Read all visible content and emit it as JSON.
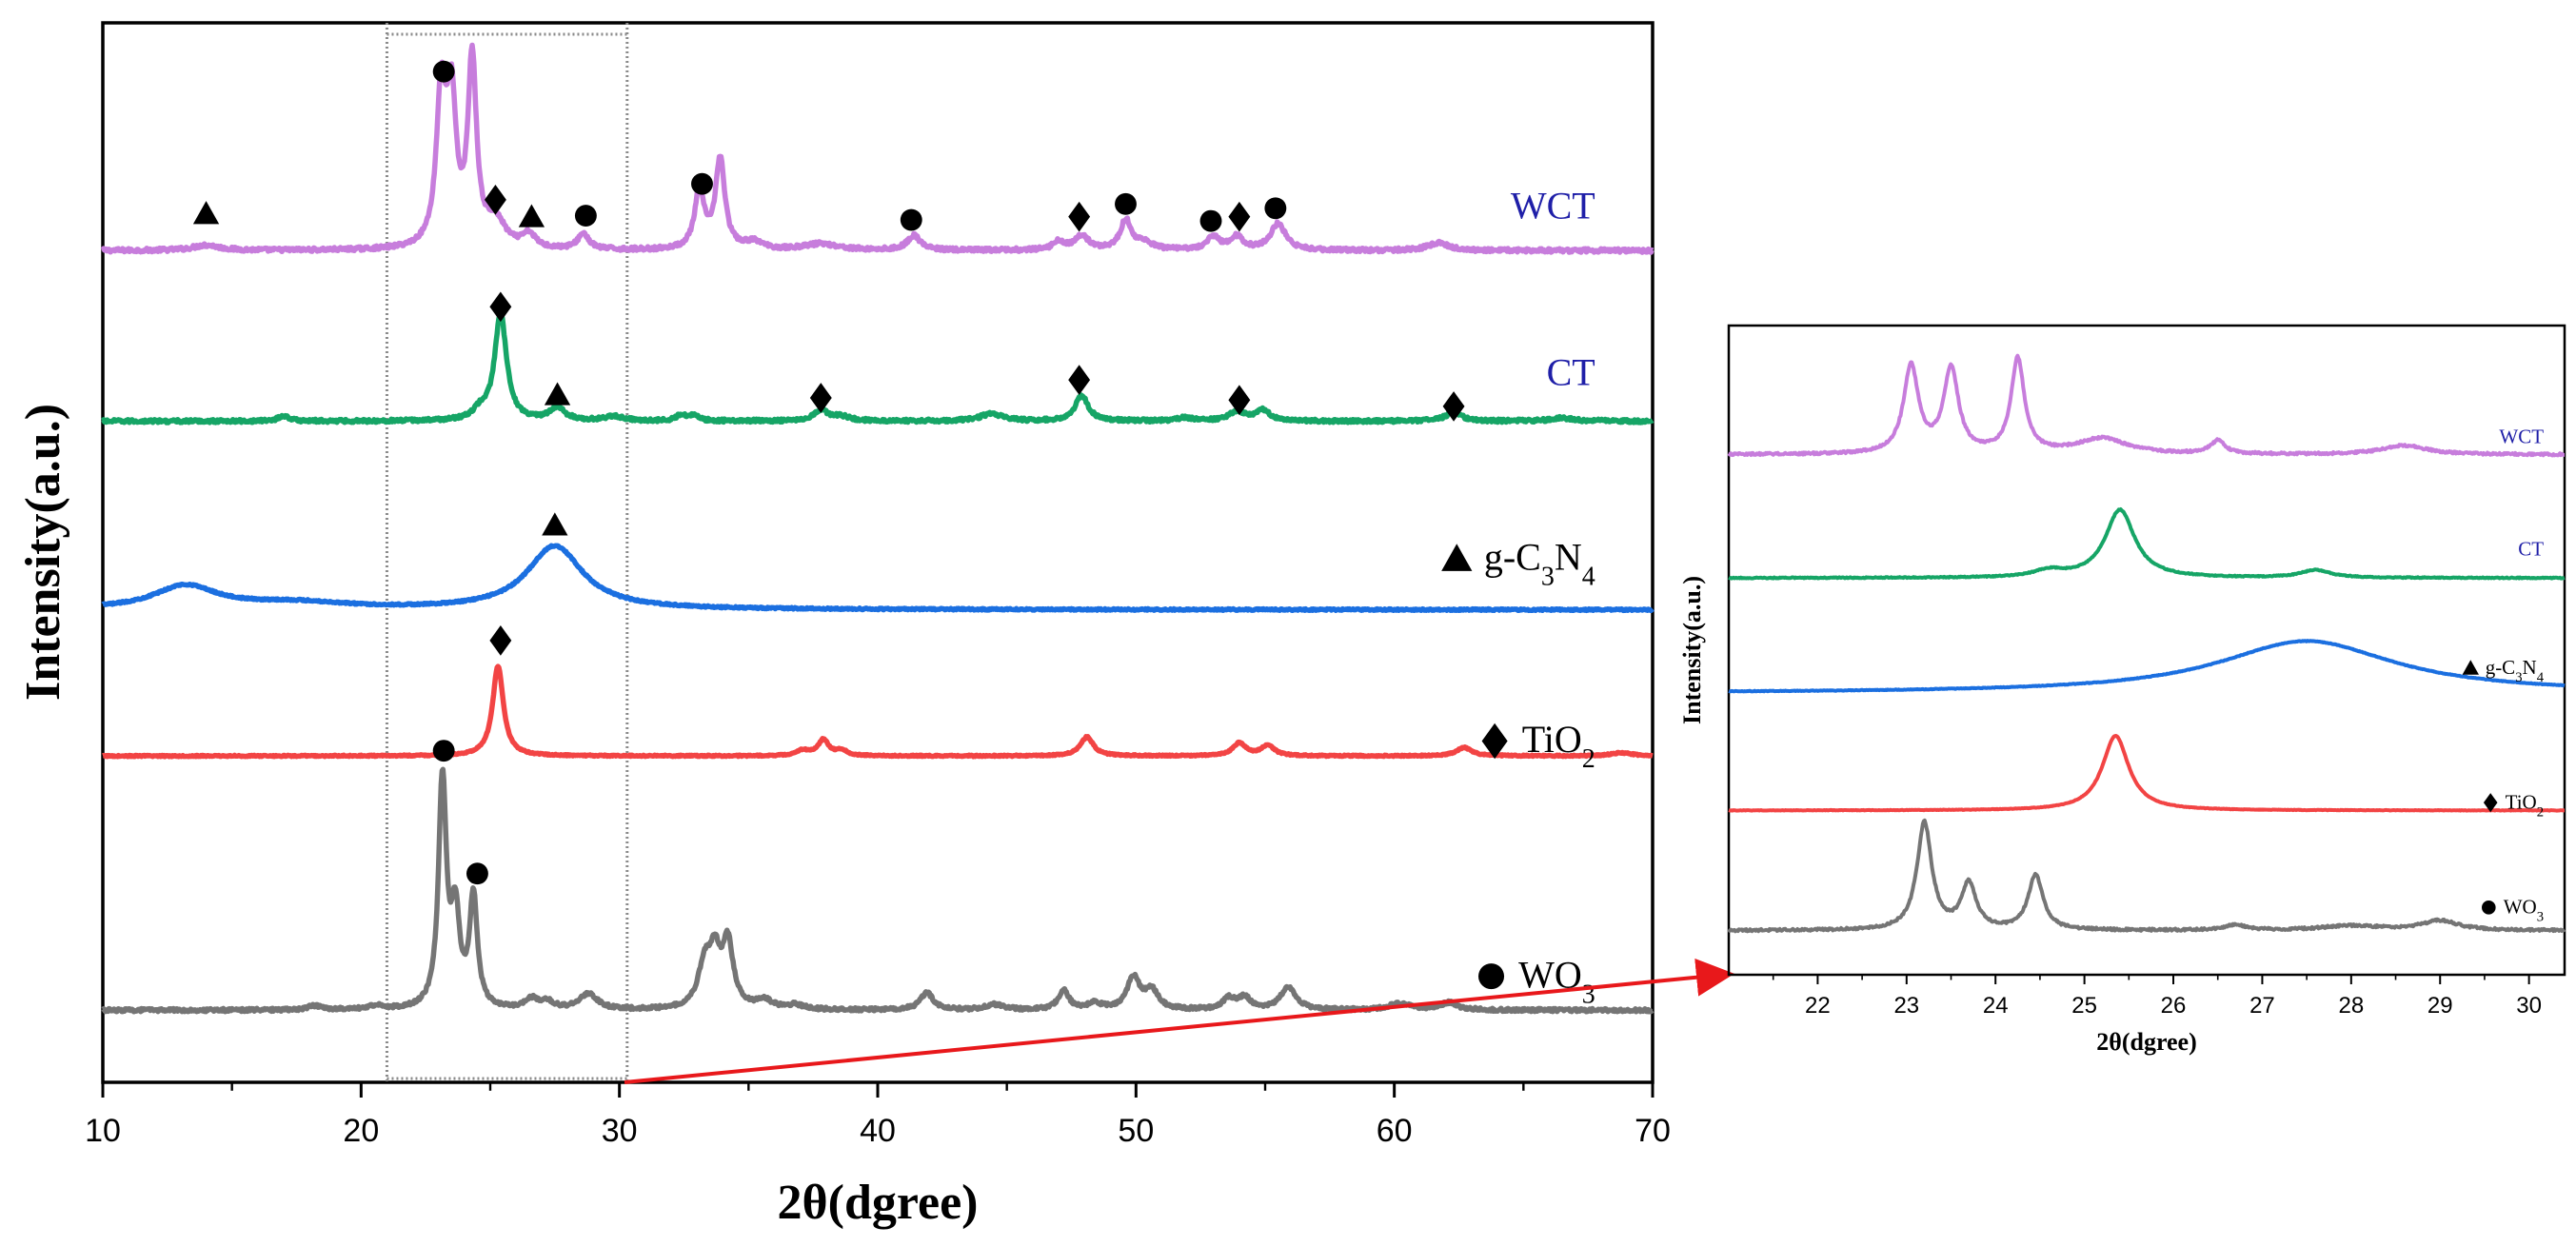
{
  "chart_data": [
    {
      "id": "main",
      "type": "line",
      "title": "",
      "xlabel": "2θ(dgree)",
      "ylabel": "Intensity(a.u.)",
      "xlim": [
        10,
        70
      ],
      "xticks": [
        10,
        20,
        30,
        40,
        50,
        60,
        70
      ],
      "y_units": "stacked intensity (a.u.)",
      "ylim": [
        0,
        100
      ],
      "yticks_visible": false,
      "grid": false,
      "highlight_region": {
        "x_range": [
          21,
          30.3
        ],
        "style": "dotted"
      },
      "series": [
        {
          "key": "wct",
          "name": "WCT",
          "label_parts": [
            {
              "t": "WCT"
            }
          ],
          "label_marker": "",
          "color": "#c77ddc",
          "label_color": "#1f1fa8",
          "baseline": 78.5,
          "noise": 0.35,
          "peaks": [
            [
              14.0,
              0.5,
              0.6
            ],
            [
              23.1,
              14,
              0.22
            ],
            [
              23.5,
              13,
              0.22
            ],
            [
              24.3,
              17.5,
              0.2
            ],
            [
              25.2,
              2.5,
              0.45
            ],
            [
              26.5,
              1.3,
              0.3
            ],
            [
              28.6,
              1.5,
              0.25
            ],
            [
              33.1,
              5.5,
              0.22
            ],
            [
              33.9,
              8.5,
              0.22
            ],
            [
              35.2,
              0.7,
              0.4
            ],
            [
              37.8,
              0.6,
              0.8
            ],
            [
              41.4,
              1.4,
              0.3
            ],
            [
              47.0,
              0.8,
              0.25
            ],
            [
              47.9,
              1.3,
              0.35
            ],
            [
              49.6,
              2.8,
              0.25
            ],
            [
              50.3,
              0.7,
              0.4
            ],
            [
              53.0,
              1.2,
              0.3
            ],
            [
              53.9,
              1.2,
              0.3
            ],
            [
              55.5,
              2.5,
              0.35
            ],
            [
              61.7,
              0.7,
              0.5
            ]
          ],
          "markers": [
            {
              "symbol": "triangle",
              "x": 14.0,
              "y": 82.0
            },
            {
              "symbol": "circle",
              "x": 23.2,
              "y": 95.4
            },
            {
              "symbol": "diamond",
              "x": 25.2,
              "y": 83.3
            },
            {
              "symbol": "triangle",
              "x": 26.6,
              "y": 81.7
            },
            {
              "symbol": "circle",
              "x": 28.7,
              "y": 81.8
            },
            {
              "symbol": "circle",
              "x": 33.2,
              "y": 84.8
            },
            {
              "symbol": "circle",
              "x": 41.3,
              "y": 81.4
            },
            {
              "symbol": "diamond",
              "x": 47.8,
              "y": 81.7
            },
            {
              "symbol": "circle",
              "x": 49.6,
              "y": 82.9
            },
            {
              "symbol": "circle",
              "x": 52.9,
              "y": 81.3
            },
            {
              "symbol": "diamond",
              "x": 54.0,
              "y": 81.7
            },
            {
              "symbol": "circle",
              "x": 55.4,
              "y": 82.5
            }
          ]
        },
        {
          "key": "ct",
          "name": "CT",
          "label_parts": [
            {
              "t": "CT"
            }
          ],
          "label_marker": "",
          "color": "#16a566",
          "label_color": "#1f1fa8",
          "baseline": 62.4,
          "noise": 0.3,
          "peaks": [
            [
              17.0,
              0.5,
              0.25
            ],
            [
              24.6,
              0.8,
              0.3
            ],
            [
              25.4,
              10,
              0.28
            ],
            [
              27.6,
              1.2,
              0.35
            ],
            [
              29.8,
              0.4,
              0.5
            ],
            [
              32.4,
              0.6,
              0.2
            ],
            [
              32.9,
              0.6,
              0.2
            ],
            [
              37.8,
              1.0,
              0.35
            ],
            [
              38.6,
              0.4,
              0.4
            ],
            [
              44.4,
              0.7,
              0.5
            ],
            [
              47.9,
              2.4,
              0.3
            ],
            [
              51.9,
              0.3,
              0.4
            ],
            [
              53.9,
              0.9,
              0.35
            ],
            [
              54.9,
              1.0,
              0.35
            ],
            [
              62.3,
              0.9,
              0.35
            ],
            [
              66.5,
              0.3,
              0.5
            ]
          ],
          "markers": [
            {
              "symbol": "diamond",
              "x": 25.4,
              "y": 73.2
            },
            {
              "symbol": "triangle",
              "x": 27.6,
              "y": 64.9
            },
            {
              "symbol": "diamond",
              "x": 37.8,
              "y": 64.6
            },
            {
              "symbol": "diamond",
              "x": 47.8,
              "y": 66.3
            },
            {
              "symbol": "diamond",
              "x": 54.0,
              "y": 64.4
            },
            {
              "symbol": "diamond",
              "x": 62.3,
              "y": 63.8
            }
          ]
        },
        {
          "key": "gcn",
          "name": "▲ g-C3N4",
          "label_parts": [
            {
              "t": "g-C"
            },
            {
              "t": "3",
              "sub": true
            },
            {
              "t": "N"
            },
            {
              "t": "4",
              "sub": true
            }
          ],
          "label_marker": "triangle",
          "color": "#1b6fe0",
          "label_color": "#000000",
          "baseline": 44.6,
          "noise": 0.15,
          "peaks": [
            [
              13.2,
              2.2,
              1.5
            ],
            [
              17.5,
              0.6,
              2.5
            ],
            [
              27.5,
              6.0,
              1.3
            ]
          ],
          "markers": [
            {
              "symbol": "triangle",
              "x": 27.5,
              "y": 52.6
            }
          ]
        },
        {
          "key": "tio2",
          "name": "♦ TiO2",
          "label_parts": [
            {
              "t": "TiO"
            },
            {
              "t": "2",
              "sub": true
            }
          ],
          "label_marker": "diamond",
          "color": "#f24444",
          "label_color": "#000000",
          "baseline": 30.8,
          "noise": 0.12,
          "peaks": [
            [
              25.3,
              8.5,
              0.25
            ],
            [
              37.1,
              0.5,
              0.3
            ],
            [
              37.9,
              1.5,
              0.25
            ],
            [
              38.6,
              0.5,
              0.25
            ],
            [
              48.1,
              1.8,
              0.3
            ],
            [
              54.0,
              1.2,
              0.3
            ],
            [
              55.1,
              1.0,
              0.3
            ],
            [
              62.7,
              0.8,
              0.35
            ],
            [
              68.8,
              0.3,
              0.5
            ]
          ],
          "markers": [
            {
              "symbol": "diamond",
              "x": 25.4,
              "y": 41.7
            }
          ]
        },
        {
          "key": "wo3",
          "name": "● WO3",
          "label_parts": [
            {
              "t": "WO"
            },
            {
              "t": "3",
              "sub": true
            }
          ],
          "label_marker": "circle",
          "color": "#757575",
          "label_color": "#000000",
          "baseline": 6.8,
          "noise": 0.3,
          "peaks": [
            [
              18.2,
              0.4,
              0.3
            ],
            [
              20.6,
              0.4,
              0.3
            ],
            [
              23.15,
              21.5,
              0.18
            ],
            [
              23.65,
              8.5,
              0.2
            ],
            [
              24.35,
              10.5,
              0.18
            ],
            [
              26.6,
              0.9,
              0.3
            ],
            [
              27.2,
              0.7,
              0.3
            ],
            [
              28.8,
              1.5,
              0.4
            ],
            [
              33.3,
              4.0,
              0.3
            ],
            [
              33.7,
              4.5,
              0.25
            ],
            [
              34.2,
              6.0,
              0.25
            ],
            [
              35.6,
              0.8,
              0.4
            ],
            [
              36.8,
              0.4,
              0.4
            ],
            [
              41.9,
              1.6,
              0.3
            ],
            [
              44.5,
              0.5,
              0.4
            ],
            [
              47.2,
              1.8,
              0.25
            ],
            [
              48.4,
              0.6,
              0.3
            ],
            [
              49.9,
              3.0,
              0.3
            ],
            [
              50.6,
              1.8,
              0.3
            ],
            [
              53.6,
              1.0,
              0.3
            ],
            [
              54.2,
              1.1,
              0.3
            ],
            [
              55.9,
              2.2,
              0.35
            ],
            [
              60.2,
              0.6,
              0.5
            ],
            [
              62.1,
              0.7,
              0.4
            ]
          ],
          "markers": [
            {
              "symbol": "circle",
              "x": 23.2,
              "y": 31.3
            },
            {
              "symbol": "circle",
              "x": 24.5,
              "y": 19.7
            }
          ]
        }
      ]
    },
    {
      "id": "inset",
      "type": "line",
      "title": "",
      "xlabel": "2θ(dgree)",
      "ylabel": "Intensity(a.u.)",
      "xlim": [
        21.0,
        30.4
      ],
      "xticks": [
        22,
        23,
        24,
        25,
        26,
        27,
        28,
        29,
        30
      ],
      "ylim": [
        0,
        100
      ],
      "yticks_visible": false,
      "grid": false,
      "series": [
        {
          "key": "wct",
          "name": "WCT",
          "label_parts": [
            {
              "t": "WCT"
            }
          ],
          "label_marker": "",
          "color": "#c77ddc",
          "label_color": "#1f1fa8",
          "baseline": 80.1,
          "noise": 0.35,
          "peaks": [
            [
              23.05,
              13.5,
              0.1
            ],
            [
              23.5,
              13,
              0.1
            ],
            [
              24.25,
              14.5,
              0.09
            ],
            [
              25.2,
              2.4,
              0.35
            ],
            [
              26.5,
              2.0,
              0.1
            ],
            [
              28.6,
              1.4,
              0.3
            ]
          ]
        },
        {
          "key": "ct",
          "name": "CT",
          "label_parts": [
            {
              "t": "CT"
            }
          ],
          "label_marker": "",
          "color": "#16a566",
          "label_color": "#1f1fa8",
          "baseline": 61.1,
          "noise": 0.15,
          "peaks": [
            [
              24.6,
              1.0,
              0.2
            ],
            [
              25.4,
              10.5,
              0.2
            ],
            [
              27.6,
              1.2,
              0.2
            ]
          ]
        },
        {
          "key": "gcn",
          "name": "▲ g-C3N4",
          "label_parts": [
            {
              "t": "g-C"
            },
            {
              "t": "3",
              "sub": true
            },
            {
              "t": "N"
            },
            {
              "t": "4",
              "sub": true
            }
          ],
          "label_marker": "triangle",
          "color": "#1b6fe0",
          "label_color": "#000000",
          "baseline": 43.4,
          "noise": 0.1,
          "peaks": [
            [
              27.5,
              8.0,
              1.2
            ]
          ]
        },
        {
          "key": "tio2",
          "name": "♦ TiO2",
          "label_parts": [
            {
              "t": "TiO"
            },
            {
              "t": "2",
              "sub": true
            }
          ],
          "label_marker": "diamond",
          "color": "#f24444",
          "label_color": "#000000",
          "baseline": 25.3,
          "noise": 0.08,
          "peaks": [
            [
              25.35,
              11.5,
              0.18
            ]
          ]
        },
        {
          "key": "wo3",
          "name": "● WO3",
          "label_parts": [
            {
              "t": "WO"
            },
            {
              "t": "3",
              "sub": true
            }
          ],
          "label_marker": "circle",
          "color": "#757575",
          "label_color": "#000000",
          "baseline": 6.8,
          "noise": 0.35,
          "peaks": [
            [
              23.2,
              16.5,
              0.1
            ],
            [
              23.7,
              7.0,
              0.1
            ],
            [
              24.45,
              8.5,
              0.1
            ],
            [
              26.7,
              0.8,
              0.15
            ],
            [
              28.0,
              0.7,
              0.4
            ],
            [
              29.0,
              1.5,
              0.25
            ]
          ]
        }
      ]
    }
  ]
}
